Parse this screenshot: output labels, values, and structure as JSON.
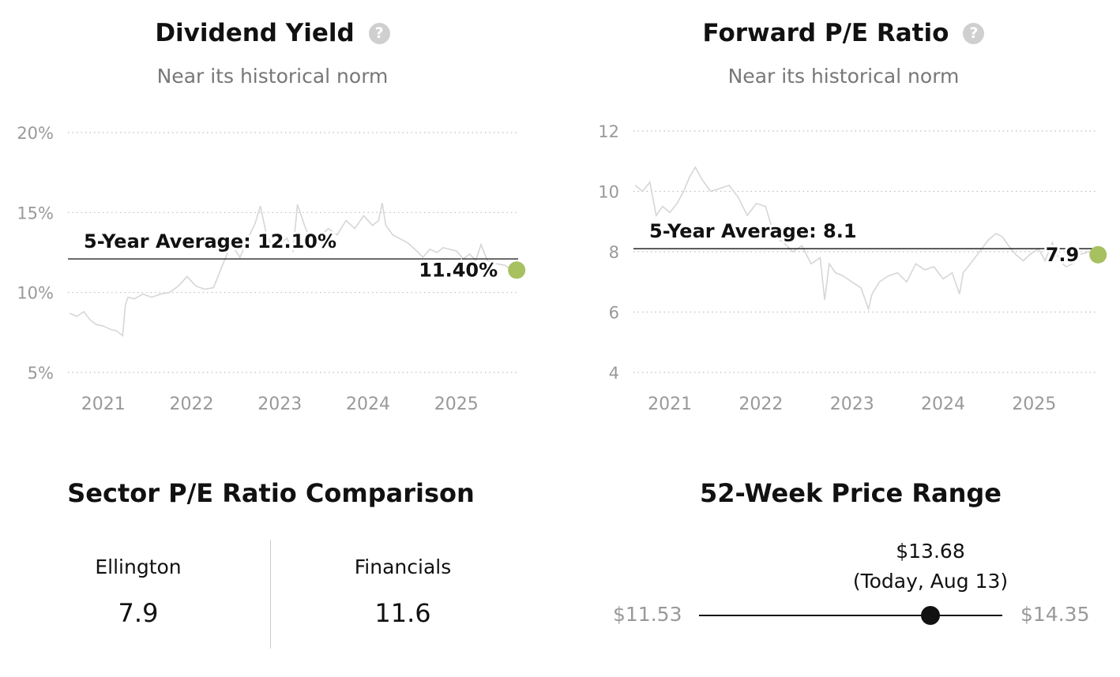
{
  "dividend": {
    "title": "Dividend Yield",
    "subtitle": "Near its historical norm",
    "help_icon": "question-circle-icon"
  },
  "forward_pe": {
    "title": "Forward P/E Ratio",
    "subtitle": "Near its historical norm",
    "help_icon": "question-circle-icon"
  },
  "sector": {
    "title": "Sector P/E Ratio Comparison",
    "left_label": "Ellington",
    "left_value": "7.9",
    "right_label": "Financials",
    "right_value": "11.6"
  },
  "price_range": {
    "title": "52-Week Price Range",
    "low": "$11.53",
    "high": "$14.35",
    "current_price": "$13.68",
    "current_note": "(Today, Aug 13)",
    "low_value": 11.53,
    "high_value": 14.35,
    "current_value": 13.68
  },
  "chart_data": [
    {
      "type": "line",
      "title": "Dividend Yield",
      "subtitle": "Near its historical norm",
      "x_ticks": [
        "2021",
        "2022",
        "2023",
        "2024",
        "2025"
      ],
      "y_ticks": [
        "5%",
        "10%",
        "15%",
        "20%"
      ],
      "ylim": [
        5,
        20
      ],
      "xlim": [
        2020.6,
        2025.7
      ],
      "grid": true,
      "average": 12.1,
      "average_label": "5-Year Average: 12.10%",
      "current_value": 11.4,
      "current_label": "11.40%",
      "line_color": "#d6d6d6",
      "marker_color": "#a7c060",
      "series": [
        {
          "x": [
            2020.62,
            2020.7,
            2020.78,
            2020.85,
            2020.92,
            2021.0,
            2021.08,
            2021.15,
            2021.22,
            2021.25,
            2021.28,
            2021.35,
            2021.45,
            2021.55,
            2021.65,
            2021.75,
            2021.85,
            2021.95,
            2022.05,
            2022.15,
            2022.25,
            2022.35,
            2022.45,
            2022.55,
            2022.65,
            2022.72,
            2022.78,
            2022.85,
            2022.92,
            2023.0,
            2023.08,
            2023.15,
            2023.2,
            2023.28,
            2023.35,
            2023.45,
            2023.55,
            2023.65,
            2023.75,
            2023.85,
            2023.95,
            2024.05,
            2024.12,
            2024.16,
            2024.2,
            2024.28,
            2024.35,
            2024.45,
            2024.55,
            2024.62,
            2024.7,
            2024.78,
            2024.85,
            2024.92,
            2025.0,
            2025.08,
            2025.15,
            2025.22,
            2025.28,
            2025.35,
            2025.45,
            2025.55,
            2025.63
          ],
          "y": [
            8.7,
            8.5,
            8.8,
            8.3,
            8.0,
            7.9,
            7.7,
            7.6,
            7.3,
            9.2,
            9.7,
            9.6,
            9.9,
            9.7,
            9.9,
            10.0,
            10.4,
            11.0,
            10.4,
            10.2,
            10.3,
            11.7,
            13.0,
            12.2,
            13.5,
            14.3,
            15.4,
            13.6,
            12.8,
            13.0,
            13.4,
            12.6,
            15.5,
            14.2,
            13.2,
            13.5,
            14.0,
            13.6,
            14.5,
            14.0,
            14.8,
            14.2,
            14.5,
            15.6,
            14.2,
            13.6,
            13.4,
            13.1,
            12.6,
            12.2,
            12.7,
            12.5,
            12.8,
            12.7,
            12.6,
            12.1,
            12.4,
            12.0,
            13.0,
            12.0,
            11.8,
            11.7,
            11.4
          ]
        }
      ]
    },
    {
      "type": "line",
      "title": "Forward P/E Ratio",
      "subtitle": "Near its historical norm",
      "x_ticks": [
        "2021",
        "2022",
        "2023",
        "2024",
        "2025"
      ],
      "y_ticks": [
        "4",
        "6",
        "8",
        "10",
        "12"
      ],
      "ylim": [
        4,
        12
      ],
      "xlim": [
        2020.6,
        2025.7
      ],
      "grid": true,
      "average": 8.1,
      "average_label": "5-Year Average: 8.1",
      "current_value": 7.9,
      "current_label": "7.9",
      "line_color": "#d6d6d6",
      "marker_color": "#a7c060",
      "series": [
        {
          "x": [
            2020.62,
            2020.7,
            2020.78,
            2020.85,
            2020.92,
            2021.0,
            2021.08,
            2021.15,
            2021.22,
            2021.28,
            2021.35,
            2021.45,
            2021.55,
            2021.65,
            2021.75,
            2021.85,
            2021.95,
            2022.05,
            2022.15,
            2022.25,
            2022.35,
            2022.45,
            2022.55,
            2022.65,
            2022.7,
            2022.75,
            2022.82,
            2022.9,
            2023.0,
            2023.1,
            2023.18,
            2023.22,
            2023.3,
            2023.4,
            2023.5,
            2023.6,
            2023.7,
            2023.8,
            2023.9,
            2024.0,
            2024.1,
            2024.18,
            2024.22,
            2024.3,
            2024.4,
            2024.5,
            2024.58,
            2024.65,
            2024.72,
            2024.8,
            2024.88,
            2024.95,
            2025.05,
            2025.12,
            2025.2,
            2025.28,
            2025.35,
            2025.42,
            2025.5,
            2025.6,
            2025.65
          ],
          "y": [
            10.2,
            10.0,
            10.3,
            9.2,
            9.5,
            9.3,
            9.6,
            10.0,
            10.5,
            10.8,
            10.4,
            10.0,
            10.1,
            10.2,
            9.8,
            9.2,
            9.6,
            9.5,
            8.5,
            8.3,
            8.0,
            8.2,
            7.6,
            7.8,
            6.4,
            7.6,
            7.3,
            7.2,
            7.0,
            6.8,
            6.1,
            6.6,
            7.0,
            7.2,
            7.3,
            7.0,
            7.6,
            7.4,
            7.5,
            7.1,
            7.3,
            6.6,
            7.3,
            7.6,
            8.0,
            8.4,
            8.6,
            8.5,
            8.2,
            7.9,
            7.7,
            7.9,
            8.1,
            7.7,
            8.3,
            7.7,
            7.5,
            7.6,
            7.9,
            8.0,
            7.9
          ]
        }
      ]
    }
  ]
}
